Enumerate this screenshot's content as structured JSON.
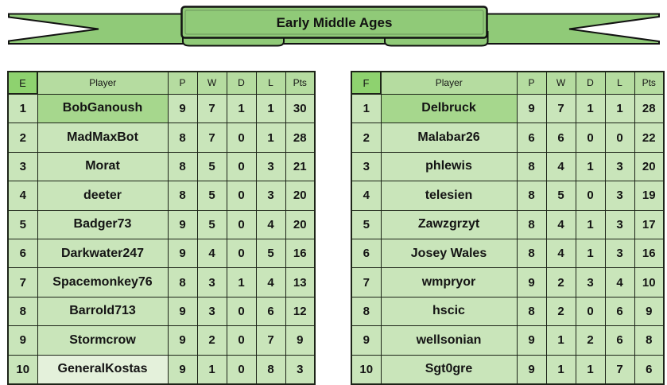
{
  "banner": {
    "title": "Early Middle Ages"
  },
  "columns": [
    "Player",
    "P",
    "W",
    "D",
    "L",
    "Pts"
  ],
  "tables": [
    {
      "division": "E",
      "rows": [
        {
          "rank": "1",
          "player": "BobGanoush",
          "p": "9",
          "w": "7",
          "d": "1",
          "l": "1",
          "pts": "30",
          "name_highlight": "first"
        },
        {
          "rank": "2",
          "player": "MadMaxBot",
          "p": "8",
          "w": "7",
          "d": "0",
          "l": "1",
          "pts": "28",
          "name_highlight": null
        },
        {
          "rank": "3",
          "player": "Morat",
          "p": "8",
          "w": "5",
          "d": "0",
          "l": "3",
          "pts": "21",
          "name_highlight": null
        },
        {
          "rank": "4",
          "player": "deeter",
          "p": "8",
          "w": "5",
          "d": "0",
          "l": "3",
          "pts": "20",
          "name_highlight": null
        },
        {
          "rank": "5",
          "player": "Badger73",
          "p": "9",
          "w": "5",
          "d": "0",
          "l": "4",
          "pts": "20",
          "name_highlight": null
        },
        {
          "rank": "6",
          "player": "Darkwater247",
          "p": "9",
          "w": "4",
          "d": "0",
          "l": "5",
          "pts": "16",
          "name_highlight": null
        },
        {
          "rank": "7",
          "player": "Spacemonkey76",
          "p": "8",
          "w": "3",
          "d": "1",
          "l": "4",
          "pts": "13",
          "name_highlight": null
        },
        {
          "rank": "8",
          "player": "Barrold713",
          "p": "9",
          "w": "3",
          "d": "0",
          "l": "6",
          "pts": "12",
          "name_highlight": null
        },
        {
          "rank": "9",
          "player": "Stormcrow",
          "p": "9",
          "w": "2",
          "d": "0",
          "l": "7",
          "pts": "9",
          "name_highlight": null
        },
        {
          "rank": "10",
          "player": "GeneralKostas",
          "p": "9",
          "w": "1",
          "d": "0",
          "l": "8",
          "pts": "3",
          "name_highlight": "last"
        }
      ]
    },
    {
      "division": "F",
      "rows": [
        {
          "rank": "1",
          "player": "Delbruck",
          "p": "9",
          "w": "7",
          "d": "1",
          "l": "1",
          "pts": "28",
          "name_highlight": "first"
        },
        {
          "rank": "2",
          "player": "Malabar26",
          "p": "6",
          "w": "6",
          "d": "0",
          "l": "0",
          "pts": "22",
          "name_highlight": null
        },
        {
          "rank": "3",
          "player": "phlewis",
          "p": "8",
          "w": "4",
          "d": "1",
          "l": "3",
          "pts": "20",
          "name_highlight": null
        },
        {
          "rank": "4",
          "player": "telesien",
          "p": "8",
          "w": "5",
          "d": "0",
          "l": "3",
          "pts": "19",
          "name_highlight": null
        },
        {
          "rank": "5",
          "player": "Zawzgrzyt",
          "p": "8",
          "w": "4",
          "d": "1",
          "l": "3",
          "pts": "17",
          "name_highlight": null
        },
        {
          "rank": "6",
          "player": "Josey Wales",
          "p": "8",
          "w": "4",
          "d": "1",
          "l": "3",
          "pts": "16",
          "name_highlight": null
        },
        {
          "rank": "7",
          "player": "wmpryor",
          "p": "9",
          "w": "2",
          "d": "3",
          "l": "4",
          "pts": "10",
          "name_highlight": null
        },
        {
          "rank": "8",
          "player": "hscic",
          "p": "8",
          "w": "2",
          "d": "0",
          "l": "6",
          "pts": "9",
          "name_highlight": null
        },
        {
          "rank": "9",
          "player": "wellsonian",
          "p": "9",
          "w": "1",
          "d": "2",
          "l": "6",
          "pts": "8",
          "name_highlight": null
        },
        {
          "rank": "10",
          "player": "Sgt0gre",
          "p": "9",
          "w": "1",
          "d": "1",
          "l": "7",
          "pts": "6",
          "name_highlight": null
        }
      ]
    }
  ],
  "colors": {
    "ribbon_green": "#90ca78",
    "cell_green": "#c9e5ba",
    "header_green": "#b5dca0",
    "division_green": "#8ed26f",
    "first_place_green": "#a6d78d",
    "last_place_pale": "#e4f1db",
    "outline": "#1d2418"
  }
}
